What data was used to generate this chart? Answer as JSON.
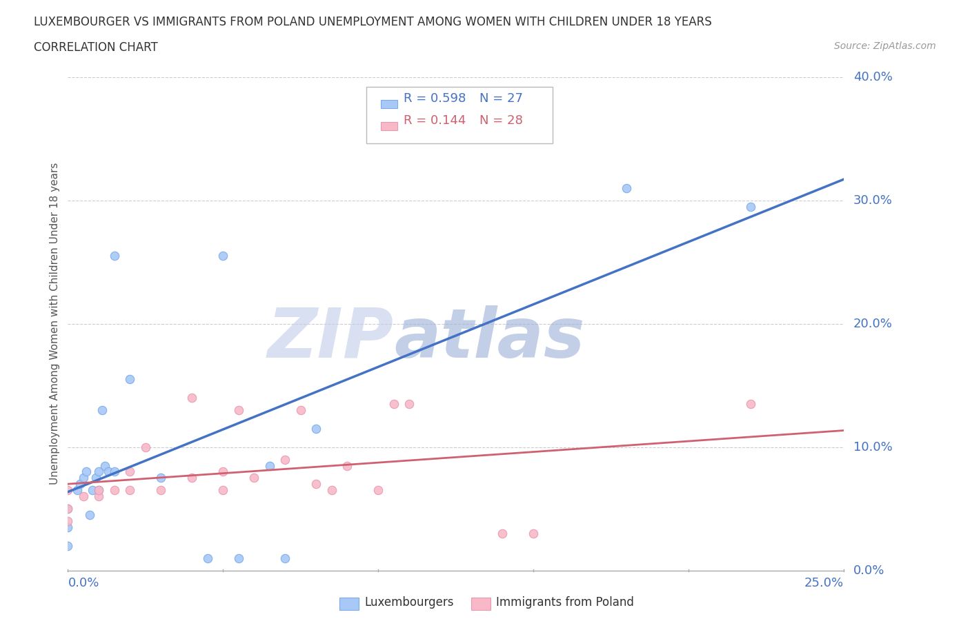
{
  "title_line1": "LUXEMBOURGER VS IMMIGRANTS FROM POLAND UNEMPLOYMENT AMONG WOMEN WITH CHILDREN UNDER 18 YEARS",
  "title_line2": "CORRELATION CHART",
  "source": "Source: ZipAtlas.com",
  "ylabel": "Unemployment Among Women with Children Under 18 years",
  "xlim": [
    0.0,
    0.25
  ],
  "ylim": [
    0.0,
    0.4
  ],
  "ytick_positions": [
    0.0,
    0.1,
    0.2,
    0.3,
    0.4
  ],
  "ytick_labels": [
    "0.0%",
    "10.0%",
    "20.0%",
    "30.0%",
    "40.0%"
  ],
  "xtick_left_label": "0.0%",
  "xtick_right_label": "25.0%",
  "watermark_part1": "ZIP",
  "watermark_part2": "atlas",
  "lux_R": 0.598,
  "lux_N": 27,
  "pol_R": 0.144,
  "pol_N": 28,
  "lux_color": "#a8c8f8",
  "pol_color": "#f8b8c8",
  "lux_edge_color": "#7aaae8",
  "pol_edge_color": "#e898b0",
  "lux_line_color": "#4472C4",
  "pol_line_color": "#d06070",
  "axis_label_color": "#4472C4",
  "background_color": "#ffffff",
  "grid_color": "#cccccc",
  "title_color": "#333333",
  "legend_label_color": "#333333",
  "watermark_color1": "#c0cce8",
  "watermark_color2": "#9ab0d8",
  "lux_x": [
    0.0,
    0.0,
    0.0,
    0.003,
    0.004,
    0.005,
    0.006,
    0.007,
    0.008,
    0.009,
    0.01,
    0.01,
    0.011,
    0.012,
    0.013,
    0.015,
    0.015,
    0.02,
    0.03,
    0.045,
    0.05,
    0.055,
    0.065,
    0.07,
    0.08,
    0.18,
    0.22
  ],
  "lux_y": [
    0.02,
    0.035,
    0.05,
    0.065,
    0.07,
    0.075,
    0.08,
    0.045,
    0.065,
    0.075,
    0.065,
    0.08,
    0.13,
    0.085,
    0.08,
    0.255,
    0.08,
    0.155,
    0.075,
    0.01,
    0.255,
    0.01,
    0.085,
    0.01,
    0.115,
    0.31,
    0.295
  ],
  "pol_x": [
    0.0,
    0.0,
    0.0,
    0.005,
    0.01,
    0.01,
    0.015,
    0.02,
    0.02,
    0.025,
    0.03,
    0.04,
    0.04,
    0.05,
    0.05,
    0.055,
    0.06,
    0.07,
    0.075,
    0.08,
    0.085,
    0.09,
    0.1,
    0.105,
    0.11,
    0.14,
    0.15,
    0.22
  ],
  "pol_y": [
    0.04,
    0.05,
    0.065,
    0.06,
    0.06,
    0.065,
    0.065,
    0.065,
    0.08,
    0.1,
    0.065,
    0.075,
    0.14,
    0.065,
    0.08,
    0.13,
    0.075,
    0.09,
    0.13,
    0.07,
    0.065,
    0.085,
    0.065,
    0.135,
    0.135,
    0.03,
    0.03,
    0.135
  ]
}
